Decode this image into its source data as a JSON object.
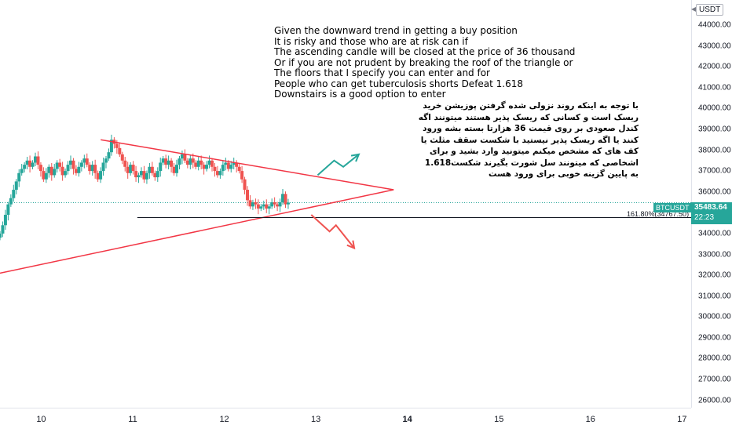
{
  "currency": "USDT",
  "symbol": "BTCUSDT",
  "last_price": "35483.64",
  "countdown": "22:23",
  "fib_label": "161.80%(34767.50)",
  "colors": {
    "up": "#26a69a",
    "down": "#ef5350",
    "trendline": "#f23645",
    "arrow_up": "#26a69a",
    "arrow_down": "#ef5350"
  },
  "note_en": "Given the downward trend in getting a buy position\nIt is risky and those who are at risk can if\nThe ascending candle will be closed at the price of 36 thousand\nOr if you are not prudent by breaking the roof of the triangle or\nThe floors that I specify you can enter and for\nPeople who can get tuberculosis shorts Defeat 1.618\nDownstairs is a good option to enter",
  "note_fa": "با توجه به اینکه روند نزولی شده گرفتن پوزیشن خرید\nریسک است و کسانی که ریسک پذیر هستند میتونند اگه\nکندل صعودی بر روی قیمت 36 هزارتا بسته بشه ورود\nکنند یا اگه ریسک پذیر نیستید با شکست سقف مثلث یا\nکف های که مشخص میکنم میتونید وارد بشید و برای\nاشخاصی که میتونند سل شورت بگیرند شکست1.618\nبه پایین گزینه خوبی برای ورود هست",
  "chart_data": {
    "type": "candlestick",
    "x_ticks": [
      "10",
      "11",
      "12",
      "13",
      "14",
      "15",
      "16",
      "17"
    ],
    "x_bold": [
      "14"
    ],
    "y_ticks": [
      26000,
      27000,
      28000,
      29000,
      30000,
      31000,
      32000,
      33000,
      34000,
      35000,
      36000,
      37000,
      38000,
      39000,
      40000,
      41000,
      42000,
      43000,
      44000
    ],
    "ylim": [
      25650,
      45200
    ],
    "xlim": [
      9.55,
      17.1
    ],
    "candles_close": [
      34000,
      34400,
      34900,
      35400,
      35700,
      36100,
      36500,
      36900,
      37100,
      37300,
      37500,
      37200,
      37400,
      37700,
      37300,
      37000,
      36600,
      36900,
      37200,
      36800,
      37100,
      37400,
      37200,
      36800,
      37000,
      37300,
      37500,
      37100,
      36900,
      37200,
      37400,
      37600,
      37300,
      37000,
      37300,
      36900,
      36600,
      37000,
      37400,
      37600,
      37900,
      38500,
      38300,
      38100,
      37800,
      37500,
      37200,
      36900,
      37300,
      37000,
      36700,
      36800,
      37000,
      36600,
      36900,
      37200,
      36900,
      36700,
      37000,
      37400,
      37600,
      37300,
      37500,
      37200,
      36900,
      37300,
      37600,
      37800,
      37500,
      37300,
      37600,
      37400,
      37200,
      37500,
      37300,
      37100,
      37300,
      37500,
      37200,
      37000,
      36800,
      37000,
      37300,
      37400,
      37100,
      37300,
      37400,
      37200,
      37000,
      36600,
      36100,
      35600,
      35300,
      35500,
      35400,
      35200,
      35300,
      35400,
      35200,
      35300,
      35500,
      35400,
      35300,
      35500,
      35900,
      35400,
      35483.64
    ],
    "x_start": 9.55,
    "x_step": 0.0297,
    "trendlines": [
      {
        "from": [
          10.65,
          38500
        ],
        "to": [
          13.85,
          36100
        ]
      },
      {
        "from": [
          9.55,
          32100
        ],
        "to": [
          13.85,
          36100
        ]
      },
      {
        "from": [
          11.05,
          34767.5
        ],
        "to": [
          17.1,
          34767.5
        ]
      }
    ],
    "arrows": [
      {
        "kind": "up",
        "points": [
          [
            13.02,
            36800
          ],
          [
            13.2,
            37500
          ],
          [
            13.3,
            37200
          ],
          [
            13.47,
            37800
          ]
        ]
      },
      {
        "kind": "down",
        "points": [
          [
            12.95,
            34900
          ],
          [
            13.15,
            34100
          ],
          [
            13.22,
            34400
          ],
          [
            13.42,
            33300
          ]
        ]
      }
    ]
  }
}
